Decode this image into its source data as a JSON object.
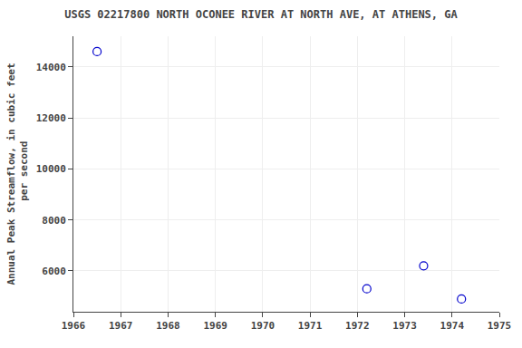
{
  "chart_data": {
    "type": "scatter",
    "title": "USGS 02217800 NORTH OCONEE RIVER AT NORTH AVE, AT ATHENS, GA",
    "y_label": "Annual Peak Streamflow, in cubic feet\n per second",
    "x": [
      1966.5,
      1972.2,
      1973.4,
      1974.2
    ],
    "values": [
      14600,
      5300,
      6200,
      4900
    ],
    "color": "#0000cc",
    "marker": "circle-open",
    "xlim": [
      1966,
      1975
    ],
    "xticks": [
      1966,
      1967,
      1968,
      1969,
      1970,
      1971,
      1972,
      1973,
      1974,
      1975
    ],
    "ylim": [
      4400,
      15200
    ],
    "yticks": [
      6000,
      8000,
      10000,
      12000,
      14000
    ],
    "grid": true
  }
}
